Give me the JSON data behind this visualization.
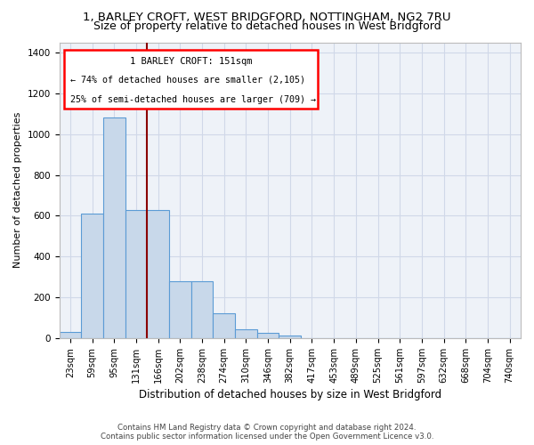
{
  "title1": "1, BARLEY CROFT, WEST BRIDGFORD, NOTTINGHAM, NG2 7RU",
  "title2": "Size of property relative to detached houses in West Bridgford",
  "xlabel": "Distribution of detached houses by size in West Bridgford",
  "ylabel": "Number of detached properties",
  "categories": [
    "23sqm",
    "59sqm",
    "95sqm",
    "131sqm",
    "166sqm",
    "202sqm",
    "238sqm",
    "274sqm",
    "310sqm",
    "346sqm",
    "382sqm",
    "417sqm",
    "453sqm",
    "489sqm",
    "525sqm",
    "561sqm",
    "597sqm",
    "632sqm",
    "668sqm",
    "704sqm",
    "740sqm"
  ],
  "values": [
    30,
    610,
    1080,
    630,
    630,
    280,
    280,
    120,
    45,
    25,
    15,
    0,
    0,
    0,
    0,
    0,
    0,
    0,
    0,
    0,
    0
  ],
  "bar_color": "#c8d8ea",
  "bar_edge_color": "#5b9bd5",
  "bg_color": "#eef2f8",
  "grid_color": "#d0d8e8",
  "marker_label": "1 BARLEY CROFT: 151sqm",
  "annotation_line1": "← 74% of detached houses are smaller (2,105)",
  "annotation_line2": "25% of semi-detached houses are larger (709) →",
  "marker_color": "#8b0000",
  "ylim": [
    0,
    1450
  ],
  "yticks": [
    0,
    200,
    400,
    600,
    800,
    1000,
    1200,
    1400
  ],
  "footer1": "Contains HM Land Registry data © Crown copyright and database right 2024.",
  "footer2": "Contains public sector information licensed under the Open Government Licence v3.0.",
  "title_fontsize": 9.5,
  "subtitle_fontsize": 9
}
